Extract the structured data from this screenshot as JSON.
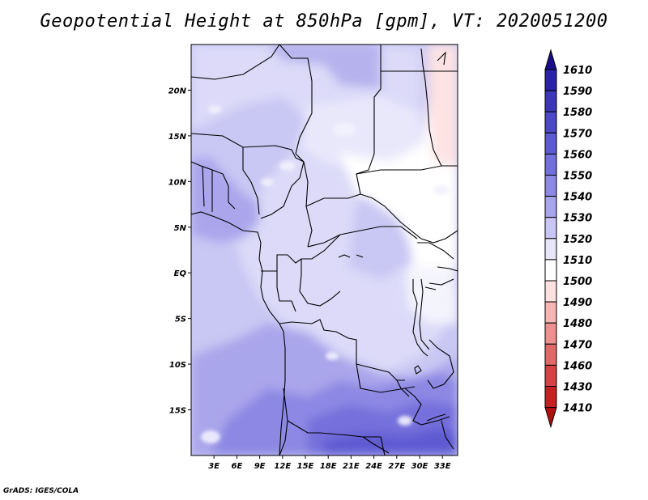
{
  "title": "Geopotential Height at 850hPa [gpm], VT: 2020051200",
  "credit": "GrADS: IGES/COLA",
  "map": {
    "type": "filled-contour map",
    "variable": "Geopotential Height at 850hPa",
    "units": "gpm",
    "valid_time": "2020051200",
    "lon_ticks": [
      "3E",
      "6E",
      "9E",
      "12E",
      "15E",
      "18E",
      "21E",
      "24E",
      "27E",
      "30E",
      "33E"
    ],
    "lat_ticks": [
      "20N",
      "15N",
      "10N",
      "5N",
      "EQ",
      "5S",
      "10S",
      "15S"
    ],
    "lon_range": [
      0,
      35
    ],
    "lat_range": [
      -20,
      25
    ]
  },
  "colorbar": {
    "levels": [
      "1610",
      "1590",
      "1580",
      "1570",
      "1560",
      "1550",
      "1540",
      "1530",
      "1520",
      "1510",
      "1500",
      "1490",
      "1480",
      "1470",
      "1460",
      "1430",
      "1410"
    ],
    "colors": [
      "#1a0d8a",
      "#2a22a8",
      "#3d37b8",
      "#4d48c6",
      "#5e5ad2",
      "#7470db",
      "#8d88e4",
      "#a7a3ec",
      "#c8c6f4",
      "#e6e5fa",
      "#ffffff",
      "#fde0e0",
      "#f6b6b6",
      "#ec9090",
      "#e06a6a",
      "#d44444",
      "#c42222",
      "#b20f0f"
    ]
  }
}
